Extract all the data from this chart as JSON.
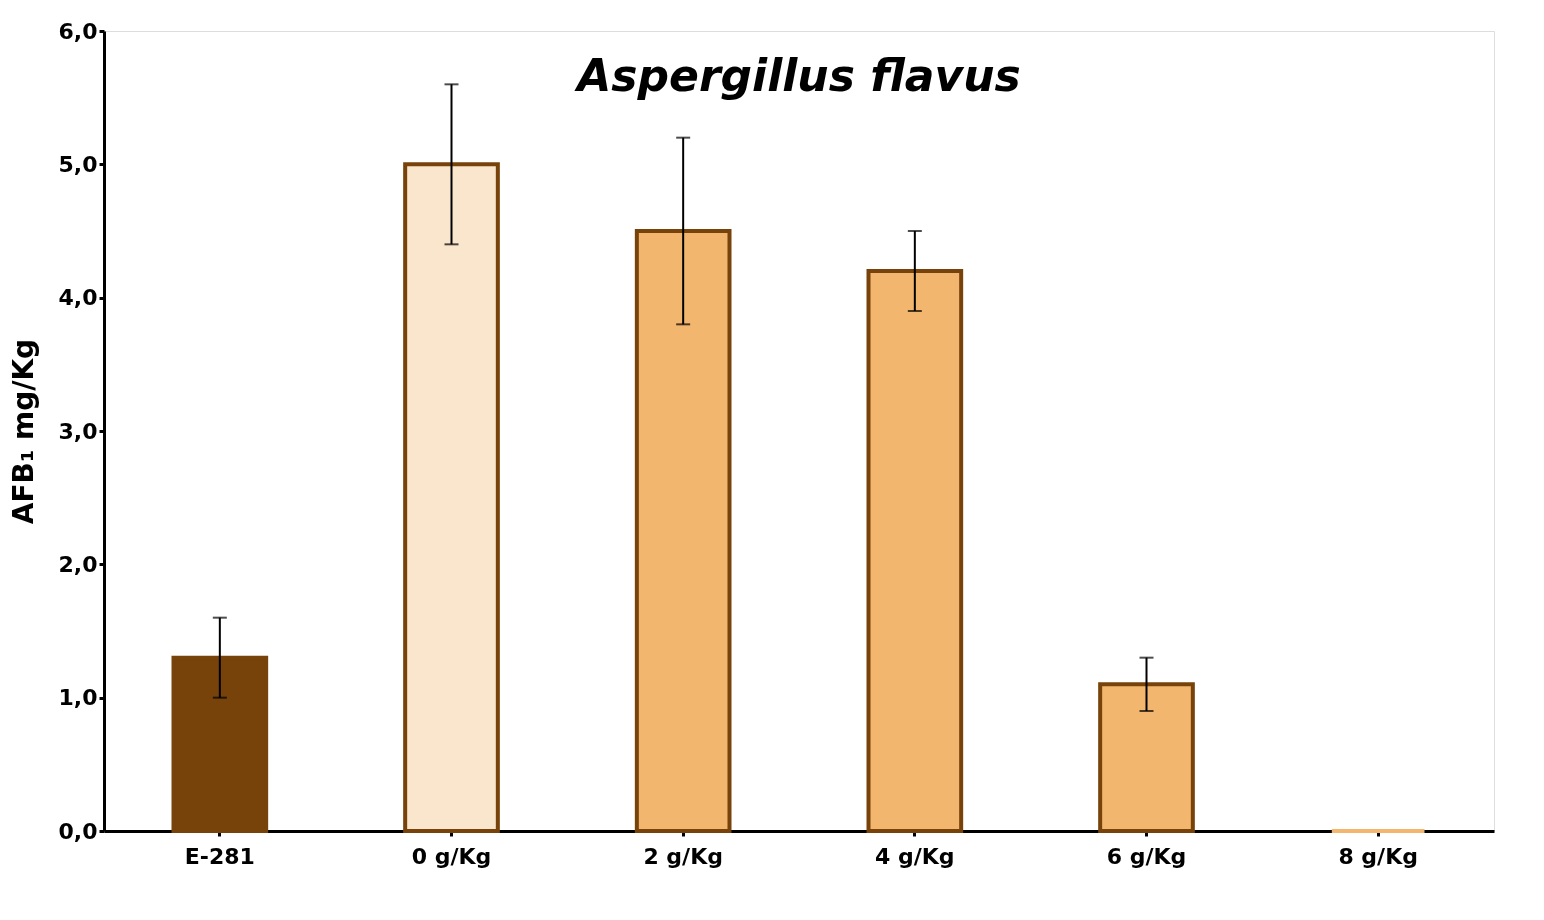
{
  "chart_data": {
    "type": "bar",
    "title": "Aspergillus flavus",
    "ylabel": "AFB₁ mg/Kg",
    "categories": [
      "E-281",
      "0 g/Kg",
      "2 g/Kg",
      "4 g/Kg",
      "6 g/Kg",
      "8 g/Kg"
    ],
    "values": [
      1.3,
      5.0,
      4.5,
      4.2,
      1.1,
      0
    ],
    "errors": [
      0.3,
      0.6,
      0.7,
      0.3,
      0.2,
      null
    ],
    "colors": [
      "#77430b",
      "#fae5cd",
      "#f3b66e",
      "#f3b66e",
      "#f3b66e",
      "#f3b66e"
    ],
    "ylim": [
      0,
      6
    ],
    "yticks": [
      {
        "value": 0,
        "label": "0,0"
      },
      {
        "value": 1,
        "label": "1,0"
      },
      {
        "value": 2,
        "label": "2,0"
      },
      {
        "value": 3,
        "label": "3,0"
      },
      {
        "value": 4,
        "label": "4,0"
      },
      {
        "value": 5,
        "label": "5,0"
      },
      {
        "value": 6,
        "label": "6,0"
      }
    ],
    "grid": false
  }
}
